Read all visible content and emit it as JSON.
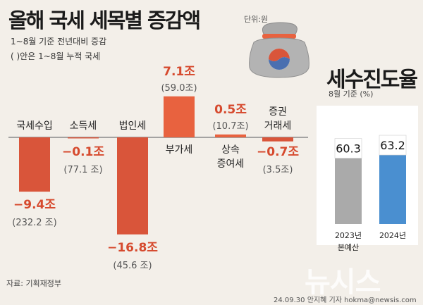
{
  "title": "올해 국세 세목별 증감액",
  "unit_note": "단위:원",
  "subtitle_lines": [
    "1~8월 기준 전년대비 증감",
    "( )안은 1~8월 누적 국세"
  ],
  "source": "자료: 기획재정부",
  "credit": "24.09.30 안지혜 기자 hokma@newsis.com",
  "watermark": "뉴시스",
  "colors": {
    "negative": "#d9553a",
    "positive": "#e8623f",
    "label_red": "#d64a2e",
    "rate_2023": "#aaaaaa",
    "rate_2024": "#4a8fd0",
    "background": "#f3efe9"
  },
  "icon": "money-bag-icon",
  "chart_data": [
    {
      "type": "bar",
      "categories": [
        "국세수입",
        "소득세",
        "법인세",
        "부가세",
        "상속 증여세",
        "증권 거래세"
      ],
      "category_lines": [
        [
          "국세수입"
        ],
        [
          "소득세"
        ],
        [
          "법인세"
        ],
        [
          "부가세"
        ],
        [
          "상속",
          "증여세"
        ],
        [
          "증권",
          "거래세"
        ]
      ],
      "values": [
        -9.4,
        -0.1,
        -16.8,
        7.1,
        0.5,
        -0.7
      ],
      "value_labels": [
        "−9.4조",
        "−0.1조",
        "−16.8조",
        "7.1조",
        "0.5조",
        "−0.7조"
      ],
      "cumulative_labels": [
        "(232.2 조)",
        "(77.1 조)",
        "(45.6 조)",
        "(59.0조)",
        "(10.7조)",
        "(3.5조)"
      ]
    },
    {
      "type": "bar",
      "title": "세수진도율",
      "subtitle": "8월 기준 (%)",
      "categories": [
        "2023년 본예산",
        "2024년"
      ],
      "category_lines": [
        [
          "2023년",
          "본예산"
        ],
        [
          "2024년"
        ]
      ],
      "values": [
        60.3,
        63.2
      ],
      "value_labels": [
        "60.3",
        "63.2"
      ]
    }
  ]
}
